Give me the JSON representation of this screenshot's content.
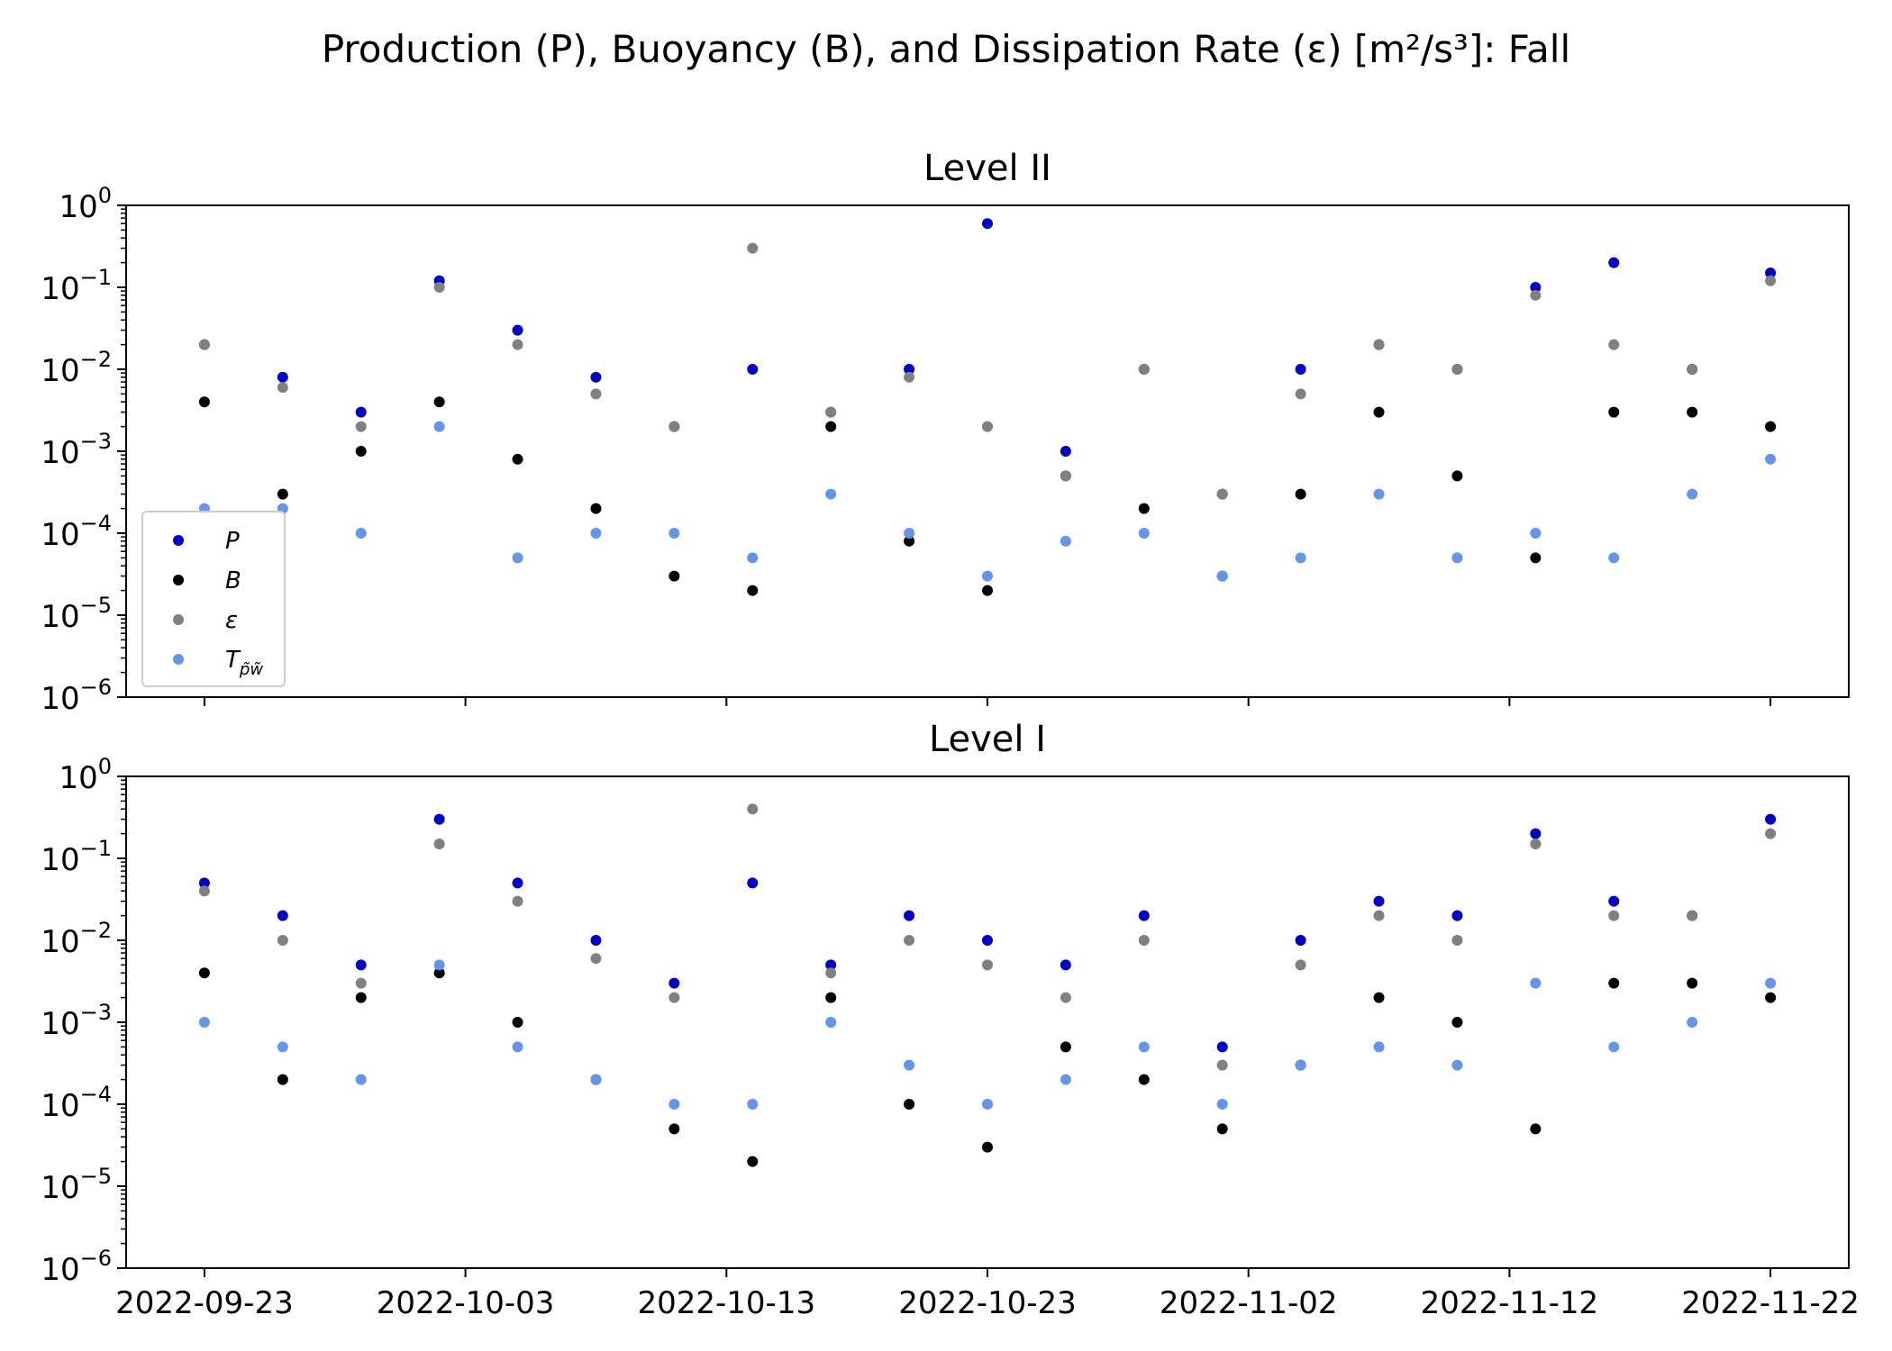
{
  "figure": {
    "title": "Production (P), Buoyancy (B), and Dissipation Rate (ε) [m²/s³]: Fall"
  },
  "chart_data": [
    {
      "type": "scatter",
      "title": "Level II",
      "xlabel": "",
      "ylabel": "",
      "yscale": "log",
      "ylim": [
        1e-06,
        1
      ],
      "xlim": [
        "2022-09-20",
        "2022-11-25"
      ],
      "x_ticks": [
        "2022-09-23",
        "2022-10-03",
        "2022-10-13",
        "2022-10-23",
        "2022-11-02",
        "2022-11-12",
        "2022-11-22"
      ],
      "y_ticks": [
        {
          "value": 1e-06,
          "base": "10",
          "exp": "−6"
        },
        {
          "value": 1e-05,
          "base": "10",
          "exp": "−5"
        },
        {
          "value": 0.0001,
          "base": "10",
          "exp": "−4"
        },
        {
          "value": 0.001,
          "base": "10",
          "exp": "−3"
        },
        {
          "value": 0.01,
          "base": "10",
          "exp": "−2"
        },
        {
          "value": 0.1,
          "base": "10",
          "exp": "−1"
        },
        {
          "value": 1,
          "base": "10",
          "exp": "0"
        }
      ],
      "legend": {
        "placement": "lower-left",
        "entries": [
          {
            "label": "P",
            "sub": "",
            "color": "#0000cd"
          },
          {
            "label": "B",
            "sub": "",
            "color": "#000000"
          },
          {
            "label": "ε",
            "sub": "",
            "color": "#808080"
          },
          {
            "label": "T",
            "sub": "p̃w̃",
            "color": "#6495ed"
          }
        ]
      },
      "series": [
        {
          "name": "P",
          "color": "#0000cd",
          "x": [
            "2022-09-23",
            "2022-09-26",
            "2022-09-29",
            "2022-10-02",
            "2022-10-05",
            "2022-10-08",
            "2022-10-11",
            "2022-10-14",
            "2022-10-17",
            "2022-10-20",
            "2022-10-23",
            "2022-10-26",
            "2022-10-29",
            "2022-11-01",
            "2022-11-04",
            "2022-11-07",
            "2022-11-10",
            "2022-11-13",
            "2022-11-16",
            "2022-11-19",
            "2022-11-22"
          ],
          "y": [
            0.02,
            0.008,
            0.003,
            0.12,
            0.03,
            0.008,
            0.002,
            0.01,
            0.003,
            0.01,
            0.6,
            0.001,
            0.01,
            0.0003,
            0.01,
            0.02,
            0.01,
            0.1,
            0.2,
            0.01,
            0.15
          ]
        },
        {
          "name": "B",
          "color": "#000000",
          "x": [
            "2022-09-23",
            "2022-09-26",
            "2022-09-29",
            "2022-10-02",
            "2022-10-05",
            "2022-10-08",
            "2022-10-11",
            "2022-10-14",
            "2022-10-17",
            "2022-10-20",
            "2022-10-23",
            "2022-10-26",
            "2022-10-29",
            "2022-11-01",
            "2022-11-04",
            "2022-11-07",
            "2022-11-10",
            "2022-11-13",
            "2022-11-16",
            "2022-11-19",
            "2022-11-22"
          ],
          "y": [
            0.004,
            0.0003,
            0.001,
            0.004,
            0.0008,
            0.0002,
            3e-05,
            2e-05,
            0.002,
            8e-05,
            2e-05,
            0.0005,
            0.0002,
            3e-05,
            0.0003,
            0.003,
            0.0005,
            5e-05,
            0.003,
            0.003,
            0.002
          ]
        },
        {
          "name": "ε",
          "color": "#808080",
          "x": [
            "2022-09-23",
            "2022-09-26",
            "2022-09-29",
            "2022-10-02",
            "2022-10-05",
            "2022-10-08",
            "2022-10-11",
            "2022-10-14",
            "2022-10-17",
            "2022-10-20",
            "2022-10-23",
            "2022-10-26",
            "2022-10-29",
            "2022-11-01",
            "2022-11-04",
            "2022-11-07",
            "2022-11-10",
            "2022-11-13",
            "2022-11-16",
            "2022-11-19",
            "2022-11-22"
          ],
          "y": [
            0.02,
            0.006,
            0.002,
            0.1,
            0.02,
            0.005,
            0.002,
            0.3,
            0.003,
            0.008,
            0.002,
            0.0005,
            0.01,
            0.0003,
            0.005,
            0.02,
            0.01,
            0.08,
            0.02,
            0.01,
            0.12
          ]
        },
        {
          "name": "T",
          "color": "#6495ed",
          "x": [
            "2022-09-23",
            "2022-09-26",
            "2022-09-29",
            "2022-10-02",
            "2022-10-05",
            "2022-10-08",
            "2022-10-11",
            "2022-10-14",
            "2022-10-17",
            "2022-10-20",
            "2022-10-23",
            "2022-10-26",
            "2022-10-29",
            "2022-11-01",
            "2022-11-04",
            "2022-11-07",
            "2022-11-10",
            "2022-11-13",
            "2022-11-16",
            "2022-11-19",
            "2022-11-22"
          ],
          "y": [
            0.0002,
            0.0002,
            0.0001,
            0.002,
            5e-05,
            0.0001,
            0.0001,
            5e-05,
            0.0003,
            0.0001,
            3e-05,
            8e-05,
            0.0001,
            3e-05,
            5e-05,
            0.0003,
            5e-05,
            0.0001,
            5e-05,
            0.0003,
            0.0008
          ]
        }
      ]
    },
    {
      "type": "scatter",
      "title": "Level I",
      "xlabel": "",
      "ylabel": "",
      "yscale": "log",
      "ylim": [
        1e-06,
        1
      ],
      "xlim": [
        "2022-09-20",
        "2022-11-25"
      ],
      "x_ticks": [
        "2022-09-23",
        "2022-10-03",
        "2022-10-13",
        "2022-10-23",
        "2022-11-02",
        "2022-11-12",
        "2022-11-22"
      ],
      "y_ticks": [
        {
          "value": 1e-06,
          "base": "10",
          "exp": "−6"
        },
        {
          "value": 1e-05,
          "base": "10",
          "exp": "−5"
        },
        {
          "value": 0.0001,
          "base": "10",
          "exp": "−4"
        },
        {
          "value": 0.001,
          "base": "10",
          "exp": "−3"
        },
        {
          "value": 0.01,
          "base": "10",
          "exp": "−2"
        },
        {
          "value": 0.1,
          "base": "10",
          "exp": "−1"
        },
        {
          "value": 1,
          "base": "10",
          "exp": "0"
        }
      ],
      "series": [
        {
          "name": "P",
          "color": "#0000cd",
          "x": [
            "2022-09-23",
            "2022-09-26",
            "2022-09-29",
            "2022-10-02",
            "2022-10-05",
            "2022-10-08",
            "2022-10-11",
            "2022-10-14",
            "2022-10-17",
            "2022-10-20",
            "2022-10-23",
            "2022-10-26",
            "2022-10-29",
            "2022-11-01",
            "2022-11-04",
            "2022-11-07",
            "2022-11-10",
            "2022-11-13",
            "2022-11-16",
            "2022-11-19",
            "2022-11-22"
          ],
          "y": [
            0.05,
            0.02,
            0.005,
            0.3,
            0.05,
            0.01,
            0.003,
            0.05,
            0.005,
            0.02,
            0.01,
            0.005,
            0.02,
            0.0005,
            0.01,
            0.03,
            0.02,
            0.2,
            0.03,
            0.02,
            0.3
          ]
        },
        {
          "name": "B",
          "color": "#000000",
          "x": [
            "2022-09-23",
            "2022-09-26",
            "2022-09-29",
            "2022-10-02",
            "2022-10-05",
            "2022-10-08",
            "2022-10-11",
            "2022-10-14",
            "2022-10-17",
            "2022-10-20",
            "2022-10-23",
            "2022-10-26",
            "2022-10-29",
            "2022-11-01",
            "2022-11-04",
            "2022-11-07",
            "2022-11-10",
            "2022-11-13",
            "2022-11-16",
            "2022-11-19",
            "2022-11-22"
          ],
          "y": [
            0.004,
            0.0002,
            0.002,
            0.004,
            0.001,
            0.0002,
            5e-05,
            2e-05,
            0.002,
            0.0001,
            3e-05,
            0.0005,
            0.0002,
            5e-05,
            0.0003,
            0.002,
            0.001,
            5e-05,
            0.003,
            0.003,
            0.002
          ]
        },
        {
          "name": "ε",
          "color": "#808080",
          "x": [
            "2022-09-23",
            "2022-09-26",
            "2022-09-29",
            "2022-10-02",
            "2022-10-05",
            "2022-10-08",
            "2022-10-11",
            "2022-10-14",
            "2022-10-17",
            "2022-10-20",
            "2022-10-23",
            "2022-10-26",
            "2022-10-29",
            "2022-11-01",
            "2022-11-04",
            "2022-11-07",
            "2022-11-10",
            "2022-11-13",
            "2022-11-16",
            "2022-11-19",
            "2022-11-22"
          ],
          "y": [
            0.04,
            0.01,
            0.003,
            0.15,
            0.03,
            0.006,
            0.002,
            0.4,
            0.004,
            0.01,
            0.005,
            0.002,
            0.01,
            0.0003,
            0.005,
            0.02,
            0.01,
            0.15,
            0.02,
            0.02,
            0.2
          ]
        },
        {
          "name": "T",
          "color": "#6495ed",
          "x": [
            "2022-09-23",
            "2022-09-26",
            "2022-09-29",
            "2022-10-02",
            "2022-10-05",
            "2022-10-08",
            "2022-10-11",
            "2022-10-14",
            "2022-10-17",
            "2022-10-20",
            "2022-10-23",
            "2022-10-26",
            "2022-10-29",
            "2022-11-01",
            "2022-11-04",
            "2022-11-07",
            "2022-11-10",
            "2022-11-13",
            "2022-11-16",
            "2022-11-19",
            "2022-11-22"
          ],
          "y": [
            0.001,
            0.0005,
            0.0002,
            0.005,
            0.0005,
            0.0002,
            0.0001,
            0.0001,
            0.001,
            0.0003,
            0.0001,
            0.0002,
            0.0005,
            0.0001,
            0.0003,
            0.0005,
            0.0003,
            0.003,
            0.0005,
            0.001,
            0.003
          ]
        }
      ]
    }
  ]
}
